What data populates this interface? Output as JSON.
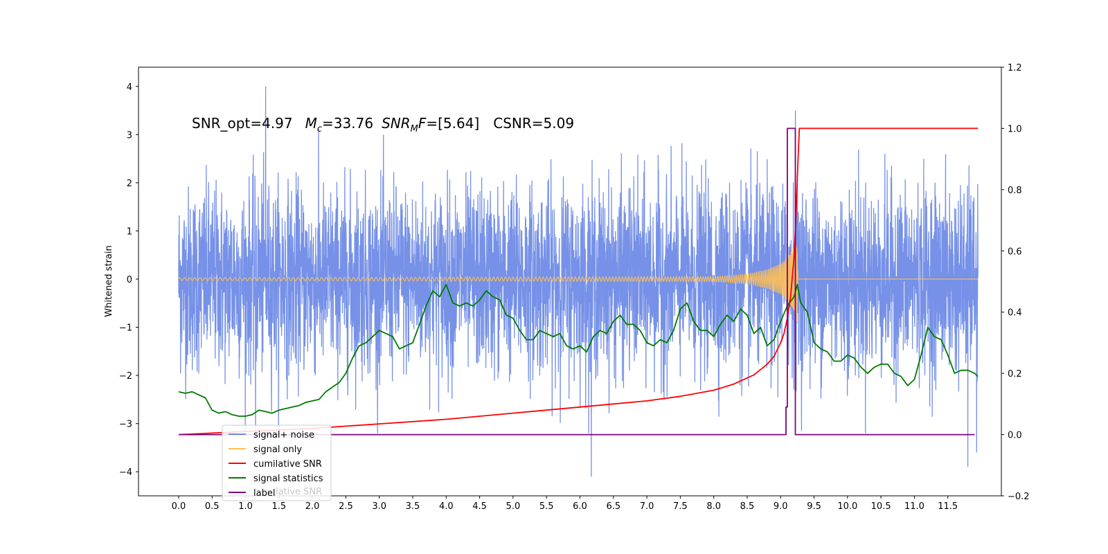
{
  "chart_data": {
    "type": "line",
    "ylabel": "Whitened strain",
    "xlim": [
      -0.6,
      12.3
    ],
    "ylim_left": [
      -4.5,
      4.4
    ],
    "ylim_right": [
      -0.2,
      1.2
    ],
    "x_ticks": [
      0.0,
      0.5,
      1.0,
      1.5,
      2.0,
      2.5,
      3.0,
      3.5,
      4.0,
      4.5,
      5.0,
      5.5,
      6.0,
      6.5,
      7.0,
      7.5,
      8.0,
      8.5,
      9.0,
      9.5,
      10.0,
      10.5,
      11.0,
      11.5
    ],
    "x_tick_labels": [
      "0.0",
      "0.5",
      "1.0",
      "1.5",
      "2.0",
      "2.5",
      "3.0",
      "3.5",
      "4.0",
      "4.5",
      "5.0",
      "5.5",
      "6.0",
      "6.5",
      "7.0",
      "7.5",
      "8.0",
      "8.5",
      "9.0",
      "9.5",
      "10.0",
      "10.5",
      "11.0",
      "11.5"
    ],
    "y_left_ticks": [
      4,
      3,
      2,
      1,
      0,
      -1,
      -2,
      -3,
      -4
    ],
    "y_left_tick_labels": [
      "4",
      "3",
      "2",
      "1",
      "0",
      "−1",
      "−2",
      "−3",
      "−4"
    ],
    "y_right_ticks": [
      1.2,
      1.0,
      0.8,
      0.6,
      0.4,
      0.2,
      0.0,
      -0.2
    ],
    "y_right_tick_labels": [
      "1.2",
      "1.0",
      "0.8",
      "0.6",
      "0.4",
      "0.2",
      "0.0",
      "−0.2"
    ],
    "annotation": {
      "snr_opt": "SNR_opt=4.97",
      "mc_symbol": "M",
      "mc_sub": "c",
      "mc_value": "=33.76",
      "snrmf_symbol": "SNR",
      "snrmf_sub": "M",
      "snrmf_f": "F",
      "snrmf_value": "=[5.64]",
      "csnr": "CSNR=5.09"
    },
    "legend_placement": "lower-left",
    "legend": [
      {
        "label": "signal+ noise",
        "color": "#6f8be6"
      },
      {
        "label": "signal only",
        "color": "#ffbf55"
      },
      {
        "label": "cumilative SNR",
        "color": "#ff0000"
      },
      {
        "label": "signal statistics",
        "color": "#007a00"
      },
      {
        "label": "label",
        "color": "#7f007f"
      }
    ],
    "legend_ghost_text": "lative SNR",
    "series": [
      {
        "name": "signal statistics",
        "axis": "right",
        "color": "#007a00",
        "x": [
          0.0,
          0.1,
          0.2,
          0.3,
          0.4,
          0.5,
          0.6,
          0.7,
          0.8,
          0.9,
          1.0,
          1.1,
          1.2,
          1.3,
          1.4,
          1.5,
          1.6,
          1.7,
          1.8,
          1.9,
          2.0,
          2.1,
          2.2,
          2.3,
          2.4,
          2.5,
          2.6,
          2.7,
          2.8,
          2.9,
          3.0,
          3.1,
          3.2,
          3.3,
          3.4,
          3.5,
          3.6,
          3.7,
          3.8,
          3.9,
          4.0,
          4.1,
          4.2,
          4.3,
          4.4,
          4.5,
          4.6,
          4.7,
          4.8,
          4.9,
          5.0,
          5.1,
          5.2,
          5.3,
          5.4,
          5.5,
          5.6,
          5.7,
          5.8,
          5.9,
          6.0,
          6.1,
          6.2,
          6.3,
          6.4,
          6.5,
          6.6,
          6.7,
          6.8,
          6.9,
          7.0,
          7.1,
          7.2,
          7.3,
          7.4,
          7.5,
          7.6,
          7.7,
          7.8,
          7.9,
          8.0,
          8.1,
          8.2,
          8.3,
          8.4,
          8.5,
          8.6,
          8.7,
          8.8,
          8.9,
          9.0,
          9.1,
          9.2,
          9.25,
          9.3,
          9.4,
          9.5,
          9.6,
          9.7,
          9.8,
          9.9,
          10.0,
          10.1,
          10.2,
          10.3,
          10.4,
          10.5,
          10.6,
          10.7,
          10.8,
          10.9,
          11.0,
          11.1,
          11.2,
          11.3,
          11.4,
          11.5,
          11.6,
          11.7,
          11.8,
          11.9,
          11.95
        ],
        "y": [
          0.14,
          0.135,
          0.14,
          0.13,
          0.12,
          0.08,
          0.07,
          0.075,
          0.065,
          0.06,
          0.06,
          0.065,
          0.08,
          0.075,
          0.07,
          0.08,
          0.085,
          0.09,
          0.095,
          0.105,
          0.11,
          0.115,
          0.14,
          0.155,
          0.17,
          0.2,
          0.25,
          0.29,
          0.3,
          0.32,
          0.34,
          0.33,
          0.32,
          0.28,
          0.29,
          0.3,
          0.36,
          0.42,
          0.47,
          0.45,
          0.49,
          0.43,
          0.42,
          0.43,
          0.42,
          0.44,
          0.47,
          0.45,
          0.44,
          0.39,
          0.38,
          0.34,
          0.31,
          0.31,
          0.34,
          0.33,
          0.32,
          0.33,
          0.29,
          0.28,
          0.29,
          0.27,
          0.32,
          0.34,
          0.33,
          0.37,
          0.39,
          0.36,
          0.36,
          0.34,
          0.3,
          0.29,
          0.31,
          0.3,
          0.34,
          0.41,
          0.43,
          0.37,
          0.34,
          0.34,
          0.32,
          0.36,
          0.39,
          0.37,
          0.41,
          0.39,
          0.33,
          0.35,
          0.29,
          0.31,
          0.37,
          0.42,
          0.45,
          0.49,
          0.43,
          0.4,
          0.3,
          0.28,
          0.27,
          0.24,
          0.24,
          0.26,
          0.25,
          0.22,
          0.2,
          0.22,
          0.23,
          0.23,
          0.2,
          0.19,
          0.16,
          0.18,
          0.26,
          0.35,
          0.32,
          0.31,
          0.26,
          0.2,
          0.21,
          0.21,
          0.2,
          0.19
        ]
      },
      {
        "name": "cumilative SNR",
        "axis": "right",
        "color": "#ff0000",
        "x": [
          0.0,
          1.0,
          2.0,
          3.0,
          4.0,
          5.0,
          6.0,
          7.0,
          7.5,
          8.0,
          8.3,
          8.6,
          8.8,
          8.9,
          9.0,
          9.05,
          9.1,
          9.15,
          9.2,
          9.23,
          9.26,
          9.28,
          9.3,
          10.0,
          11.0,
          11.95
        ],
        "y": [
          0.0,
          0.01,
          0.02,
          0.035,
          0.05,
          0.07,
          0.09,
          0.11,
          0.125,
          0.145,
          0.165,
          0.195,
          0.23,
          0.255,
          0.3,
          0.33,
          0.38,
          0.45,
          0.58,
          0.72,
          0.9,
          1.0,
          1.0,
          1.0,
          1.0,
          1.0
        ]
      },
      {
        "name": "label",
        "axis": "right",
        "color": "#7f007f",
        "x": [
          0.0,
          9.08,
          9.08,
          9.1,
          9.1,
          9.22,
          9.22,
          9.28,
          9.28,
          11.9
        ],
        "y": [
          0.0,
          0.0,
          0.09,
          0.09,
          1.0,
          1.0,
          0.0,
          0.0,
          0.0,
          0.0
        ]
      }
    ],
    "signal_only_envelope": {
      "axis": "left",
      "color": "#ffbf55",
      "x": [
        0.0,
        8.0,
        8.5,
        8.8,
        9.0,
        9.1,
        9.2,
        9.25,
        9.3
      ],
      "amplitude": [
        0.03,
        0.05,
        0.1,
        0.2,
        0.32,
        0.45,
        0.7,
        0.95,
        0.0
      ]
    },
    "signal_noise": {
      "axis": "left",
      "color": "#6f8be6",
      "x_range": [
        0.0,
        11.95
      ],
      "peaks": [
        {
          "x": 1.3,
          "y": 4.0
        },
        {
          "x": 9.22,
          "y": 3.5
        },
        {
          "x": 6.17,
          "y": -4.1
        },
        {
          "x": 11.8,
          "y": -3.9
        },
        {
          "x": 11.93,
          "y": -3.6
        },
        {
          "x": 1.15,
          "y": -3.3
        }
      ]
    }
  }
}
